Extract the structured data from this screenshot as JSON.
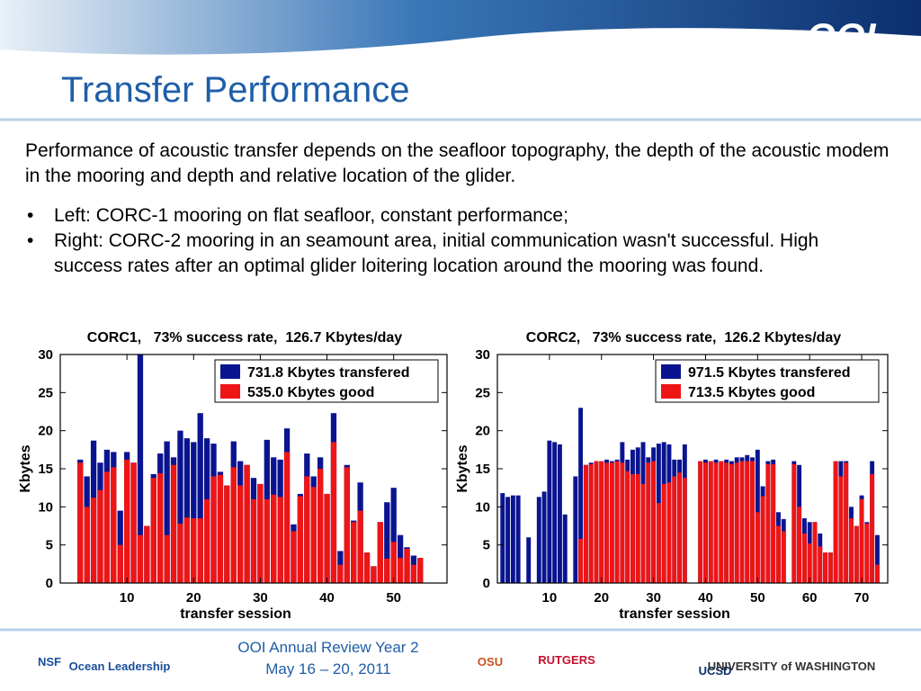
{
  "header": {
    "logo": "OOI",
    "title": "Transfer Performance"
  },
  "body": {
    "paragraph": "Performance of acoustic transfer depends on the seafloor topography, the depth of the acoustic modem in the mooring and depth and relative location of the glider.",
    "bullets": [
      "Left: CORC-1 mooring on flat seafloor, constant performance;",
      "Right: CORC-2 mooring in an seamount area, initial communication wasn't successful. High success rates after an optimal glider loitering location around the mooring was found."
    ]
  },
  "footer": {
    "line1": "OOI Annual Review Year 2",
    "line2": "May 16 – 20, 2011",
    "logos": [
      "NSF",
      "Ocean Leadership",
      "OSU",
      "RUTGERS",
      "UCSD",
      "UNIVERSITY of WASHINGTON"
    ]
  },
  "chart_data": [
    {
      "type": "bar",
      "title": "CORC1,   73% success rate,  126.7 Kbytes/day",
      "x_label": "transfer session",
      "y_label": "Kbytes",
      "xlim": [
        0,
        58
      ],
      "xticks": [
        10,
        20,
        30,
        40,
        50
      ],
      "ylim": [
        0,
        30
      ],
      "yticks": [
        0,
        5,
        10,
        15,
        20,
        25,
        30
      ],
      "legend": "upper right",
      "x": [
        3,
        4,
        5,
        6,
        7,
        8,
        9,
        10,
        11,
        12,
        13,
        14,
        15,
        16,
        17,
        18,
        19,
        20,
        21,
        22,
        23,
        24,
        25,
        26,
        27,
        28,
        29,
        30,
        31,
        32,
        33,
        34,
        35,
        36,
        37,
        38,
        39,
        40,
        41,
        42,
        43,
        44,
        45,
        46,
        47,
        48,
        49,
        50,
        51,
        52,
        53,
        54
      ],
      "series": [
        {
          "name": "731.8 Kbytes transfered",
          "color": "#0a1490",
          "values": [
            16.2,
            14,
            18.7,
            15.8,
            17.5,
            17.2,
            9.5,
            17.2,
            15.8,
            30,
            7.5,
            14.3,
            17,
            18.6,
            16.5,
            20,
            19,
            18.5,
            22.3,
            19,
            18.3,
            14.6,
            12.8,
            18.6,
            16,
            15.5,
            13.8,
            13,
            18.8,
            16.5,
            16.2,
            20.3,
            7.7,
            11.7,
            17,
            14,
            16.5,
            11.7,
            22.3,
            4.2,
            15.5,
            8.2,
            13.2,
            4,
            2.2,
            8,
            10.6,
            12.5,
            6.3,
            4.7,
            3.6,
            3.3
          ]
        },
        {
          "name": "535.0 Kbytes good",
          "color": "#ee1515",
          "values": [
            15.8,
            10,
            11.2,
            12.2,
            14.6,
            15.2,
            5,
            16.2,
            15.8,
            6.3,
            7.5,
            13.8,
            14.4,
            6.3,
            15.5,
            7.8,
            8.6,
            8.5,
            8.5,
            11,
            14,
            14.2,
            12.8,
            15.2,
            12.8,
            15.5,
            11,
            13,
            11,
            11.6,
            11.3,
            17.2,
            6.8,
            11.4,
            14,
            12.6,
            15,
            11.7,
            18.5,
            2.4,
            15.2,
            8,
            9.5,
            4,
            2.2,
            8,
            3.2,
            5.4,
            3.3,
            4.5,
            2.4,
            3.3
          ]
        }
      ]
    },
    {
      "type": "bar",
      "title": "CORC2,   73% success rate,  126.2 Kbytes/day",
      "x_label": "transfer session",
      "y_label": "Kbytes",
      "xlim": [
        0,
        75
      ],
      "xticks": [
        10,
        20,
        30,
        40,
        50,
        60,
        70
      ],
      "ylim": [
        0,
        30
      ],
      "yticks": [
        0,
        5,
        10,
        15,
        20,
        25,
        30
      ],
      "legend": "upper right",
      "x": [
        1,
        2,
        3,
        4,
        6,
        8,
        9,
        10,
        11,
        12,
        13,
        15,
        16,
        17,
        18,
        19,
        20,
        21,
        22,
        23,
        24,
        25,
        26,
        27,
        28,
        29,
        30,
        31,
        32,
        33,
        34,
        35,
        36,
        39,
        40,
        41,
        42,
        43,
        44,
        45,
        46,
        47,
        48,
        49,
        50,
        51,
        52,
        53,
        54,
        55,
        57,
        58,
        59,
        60,
        61,
        62,
        63,
        64,
        65,
        66,
        67,
        68,
        69,
        70,
        71,
        72,
        73
      ],
      "series": [
        {
          "name": "971.5 Kbytes transfered",
          "color": "#0a1490",
          "values": [
            11.8,
            11.3,
            11.5,
            11.5,
            6,
            11.3,
            12,
            18.7,
            18.5,
            18.2,
            9,
            14,
            23,
            15.5,
            15.8,
            16,
            16,
            16.2,
            16,
            16.2,
            18.5,
            16.2,
            17.5,
            17.8,
            18.5,
            16.5,
            17.8,
            18.3,
            18.5,
            18.2,
            16.2,
            16.2,
            18.2,
            16,
            16.2,
            16,
            16.2,
            16,
            16.2,
            16,
            16.5,
            16.5,
            16.8,
            16.5,
            17.5,
            12.7,
            16,
            16.2,
            9.3,
            8.4,
            16,
            15.5,
            8.5,
            8,
            8,
            6.5,
            4,
            4,
            16,
            16,
            16,
            10,
            7.5,
            11.5,
            8,
            16,
            6.3
          ]
        },
        {
          "name": "713.5 Kbytes good",
          "color": "#ee1515",
          "values": [
            0,
            0,
            0,
            0,
            0,
            0,
            0,
            0,
            0,
            0,
            0,
            0,
            5.8,
            15.5,
            15.6,
            16,
            16,
            15.8,
            15.8,
            16,
            15.8,
            14.7,
            14.3,
            14.3,
            13,
            15.8,
            16,
            10.5,
            13,
            13.2,
            14,
            14.5,
            13.8,
            16,
            15.8,
            16,
            15.8,
            16,
            15.8,
            15.6,
            15.8,
            16,
            16,
            16,
            9.3,
            11.4,
            15.6,
            15.6,
            7.5,
            6.8,
            15.6,
            10,
            6.5,
            5.2,
            8,
            4.8,
            4,
            4,
            16,
            14,
            15.8,
            8.5,
            7.5,
            11,
            7.8,
            14.3,
            2.4
          ]
        }
      ]
    }
  ]
}
